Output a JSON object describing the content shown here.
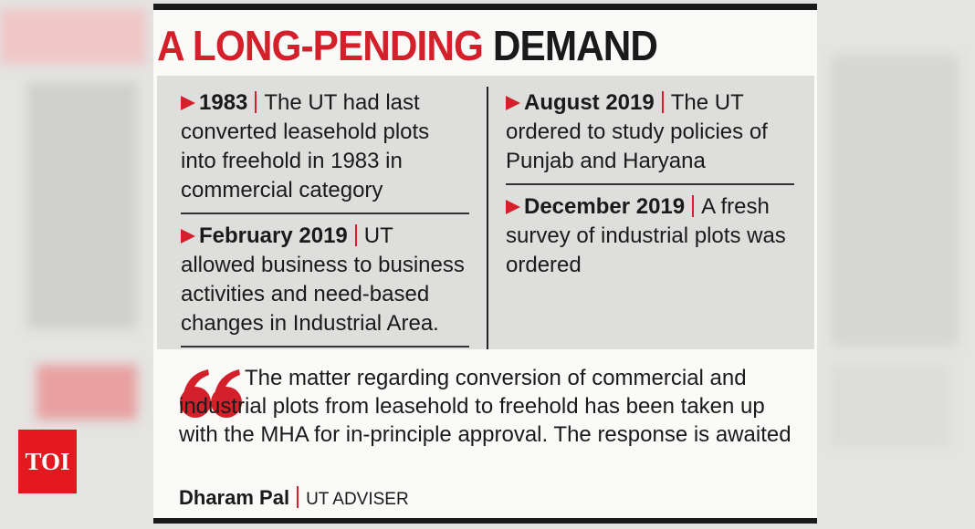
{
  "header": {
    "title_highlight": "A LONG-PENDING",
    "title_rest": "DEMAND"
  },
  "timeline": [
    {
      "date": "1983",
      "text": "The UT had last converted leasehold plots into freehold in 1983 in commercial category"
    },
    {
      "date": "February 2019",
      "text": "UT allowed business to business activities and need-based changes in Industrial Area."
    },
    {
      "date": "August 2019",
      "text": "The UT ordered to study policies of Punjab and Haryana"
    },
    {
      "date": "December 2019",
      "text": "A fresh survey of industrial plots was ordered"
    }
  ],
  "quote": {
    "text": "The matter regarding conversion of commercial and industrial plots from leasehold to freehold has been taken up with the MHA for in-principle approval. The response is awaited",
    "name": "Dharam Pal",
    "role": "UT ADVISER"
  },
  "logo": "TOI"
}
